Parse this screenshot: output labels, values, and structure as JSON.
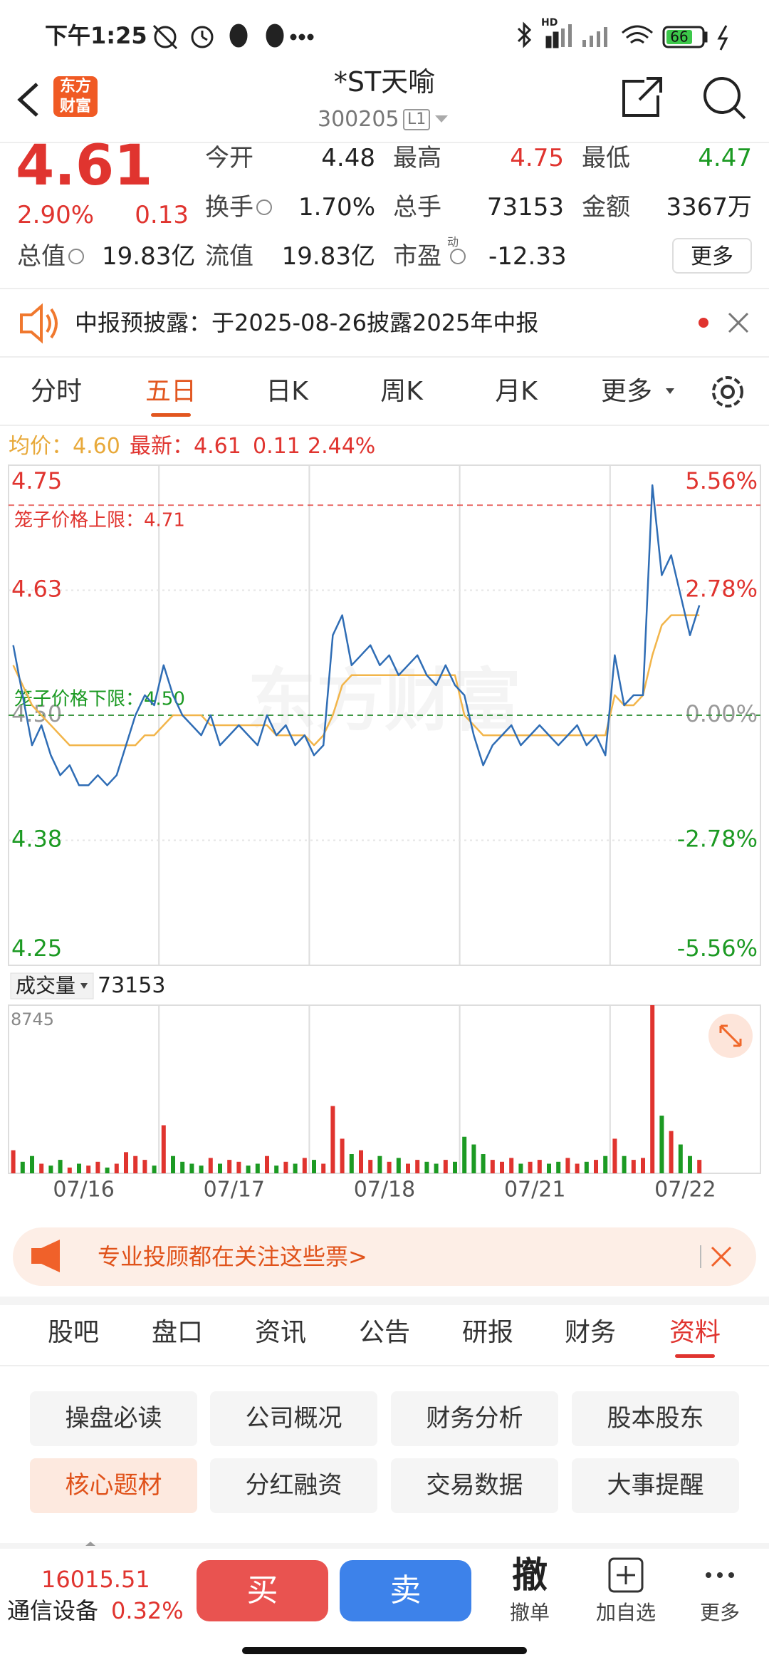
{
  "status_bar": {
    "time": "下午1:25",
    "hd": "HD",
    "battery": "66"
  },
  "header": {
    "logo": [
      "东方",
      "财富"
    ],
    "title": "*ST天喻",
    "code": "300205",
    "level": "L1"
  },
  "quote": {
    "price": "4.61",
    "change_pct": "2.90%",
    "change": "0.13",
    "stats": [
      [
        "今开",
        "4.48"
      ],
      [
        "最高",
        "4.75"
      ],
      [
        "最低",
        "4.47"
      ],
      [
        "换手",
        "1.70%"
      ],
      [
        "总手",
        "73153"
      ],
      [
        "金额",
        "3367万"
      ],
      [
        "总值",
        "19.83亿"
      ],
      [
        "流值",
        "19.83亿"
      ],
      [
        "市盈",
        "-12.33"
      ]
    ],
    "pe_sup": "动",
    "more": "更多"
  },
  "notice": {
    "text": "中报预披露：于2025-08-26披露2025年中报"
  },
  "period_tabs": {
    "items": [
      "分时",
      "五日",
      "日K",
      "周K",
      "月K",
      "更多"
    ],
    "active": 1
  },
  "five_day_chart": {
    "info": {
      "avg": "均价：4.60",
      "latest": "最新：4.61",
      "change": "0.11",
      "change_pct": "2.44%"
    },
    "watermark": "东方财富",
    "dates": [
      "07/16",
      "07/17",
      "07/18",
      "07/21",
      "07/22"
    ],
    "ylim": [
      4.25,
      4.75
    ],
    "yticks": [
      4.75,
      {
        "value": 4.625,
        "label": "4.63"
      },
      {
        "value": 4.5,
        "label": "4.50"
      },
      {
        "value": 4.375,
        "label": "4.38"
      },
      4.25
    ],
    "y2lim": [
      -5.56,
      5.56
    ],
    "y2ticks": [
      {
        "value": 5.56,
        "label": "5.56%"
      },
      {
        "value": 2.78,
        "label": "2.78%"
      },
      {
        "value": 0,
        "label": "0.00%"
      },
      {
        "value": -2.78,
        "label": "-2.78%"
      },
      {
        "value": -5.56,
        "label": "-5.56%"
      }
    ],
    "cage": [
      {
        "label": "笼子价格上限：4.71",
        "value": 4.71,
        "color": "#e0342f"
      },
      {
        "label": "笼子价格下限：4.50",
        "value": 4.5,
        "color": "#1c9a23"
      }
    ],
    "price_color": "#2f6db5",
    "avg_color": "#f2b54a",
    "price": [
      4.57,
      4.52,
      4.47,
      4.49,
      4.46,
      4.44,
      4.45,
      4.43,
      4.43,
      4.44,
      4.43,
      4.44,
      4.47,
      4.5,
      4.52,
      4.51,
      4.55,
      4.52,
      4.5,
      4.49,
      4.48,
      4.5,
      4.47,
      4.48,
      4.49,
      4.48,
      4.47,
      4.5,
      4.48,
      4.49,
      4.47,
      4.48,
      4.46,
      4.47,
      4.58,
      4.6,
      4.55,
      4.56,
      4.57,
      4.55,
      4.56,
      4.54,
      4.55,
      4.56,
      4.54,
      4.53,
      4.55,
      4.53,
      4.52,
      4.48,
      4.45,
      4.47,
      4.48,
      4.49,
      4.47,
      4.48,
      4.49,
      4.48,
      4.47,
      4.48,
      4.49,
      4.47,
      4.48,
      4.46,
      4.56,
      4.51,
      4.52,
      4.52,
      4.73,
      4.64,
      4.66,
      4.62,
      4.58,
      4.61,
      null,
      null,
      null,
      null,
      null,
      null
    ],
    "avg": [
      4.55,
      4.53,
      4.51,
      4.5,
      4.49,
      4.48,
      4.47,
      4.47,
      4.47,
      4.47,
      4.47,
      4.47,
      4.47,
      4.47,
      4.48,
      4.48,
      4.49,
      4.5,
      4.5,
      4.5,
      4.5,
      4.49,
      4.49,
      4.49,
      4.49,
      4.49,
      4.49,
      4.49,
      4.48,
      4.48,
      4.48,
      4.48,
      4.47,
      4.48,
      4.5,
      4.53,
      4.54,
      4.54,
      4.54,
      4.54,
      4.54,
      4.54,
      4.54,
      4.54,
      4.54,
      4.54,
      4.54,
      4.54,
      4.5,
      4.49,
      4.48,
      4.48,
      4.48,
      4.48,
      4.48,
      4.48,
      4.48,
      4.48,
      4.48,
      4.48,
      4.48,
      4.48,
      4.48,
      4.48,
      4.52,
      4.51,
      4.51,
      4.52,
      4.56,
      4.59,
      4.6,
      4.6,
      4.6,
      4.6,
      null,
      null,
      null,
      null,
      null,
      null
    ],
    "volume": {
      "label": "成交量",
      "total": 73153,
      "ylim": [
        0,
        8745
      ],
      "yticks": [
        8745
      ],
      "up_color": "#e0342f",
      "down_color": "#1c9a23",
      "values": [
        1200,
        600,
        900,
        500,
        400,
        700,
        300,
        500,
        400,
        600,
        300,
        500,
        1100,
        900,
        700,
        400,
        2500,
        900,
        600,
        500,
        400,
        800,
        500,
        700,
        600,
        400,
        500,
        900,
        400,
        600,
        500,
        800,
        700,
        500,
        3500,
        1800,
        1000,
        1200,
        700,
        900,
        600,
        800,
        500,
        700,
        600,
        500,
        700,
        600,
        1900,
        1500,
        1000,
        700,
        600,
        800,
        500,
        600,
        700,
        500,
        600,
        800,
        500,
        600,
        700,
        900,
        1800,
        900,
        700,
        800,
        8745,
        3000,
        2200,
        1500,
        900,
        700,
        null,
        null,
        null,
        null,
        null,
        null
      ]
    }
  },
  "banner": {
    "text": "专业投顾都在关注这些票>"
  },
  "info_tabs": {
    "items": [
      "股吧",
      "盘口",
      "资讯",
      "公告",
      "研报",
      "财务",
      "资料"
    ],
    "active": 6
  },
  "shortcuts": {
    "items": [
      "操盘必读",
      "公司概况",
      "财务分析",
      "股本股东",
      "核心题材",
      "分红融资",
      "交易数据",
      "大事提醒"
    ],
    "active": 4
  },
  "bottom": {
    "index_value": "16015.51",
    "sector": "通信设备",
    "sector_change": "0.32%",
    "buy": "买",
    "sell": "卖",
    "cancel_icon": "撤",
    "cancel": "撤单",
    "add": "加自选",
    "more": "更多"
  }
}
